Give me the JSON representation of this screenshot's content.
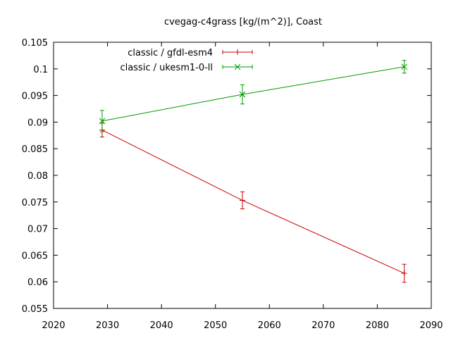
{
  "chart_data": {
    "type": "line",
    "title": "cvegag-c4grass [kg/(m^2)], Coast",
    "xlabel": "",
    "ylabel": "",
    "xlim": [
      2020,
      2090
    ],
    "ylim": [
      0.055,
      0.105
    ],
    "xticks": [
      "2020",
      "2030",
      "2040",
      "2050",
      "2060",
      "2070",
      "2080",
      "2090"
    ],
    "yticks": [
      "0.055",
      "0.06",
      "0.065",
      "0.07",
      "0.075",
      "0.08",
      "0.085",
      "0.09",
      "0.095",
      "0.1",
      "0.105"
    ],
    "grid": false,
    "legend_position": "top-left",
    "series": [
      {
        "name": "classic / gfdl-esm4",
        "color": "#cc0000",
        "marker": "plus",
        "x": [
          2029,
          2055,
          2085
        ],
        "y": [
          0.0885,
          0.0753,
          0.0616
        ],
        "err": [
          0.0013,
          0.0016,
          0.0017
        ]
      },
      {
        "name": "classic / ukesm1-0-ll",
        "color": "#009900",
        "marker": "cross",
        "x": [
          2029,
          2055,
          2085
        ],
        "y": [
          0.0902,
          0.0952,
          0.1004
        ],
        "err": [
          0.002,
          0.0018,
          0.0012
        ]
      }
    ]
  }
}
